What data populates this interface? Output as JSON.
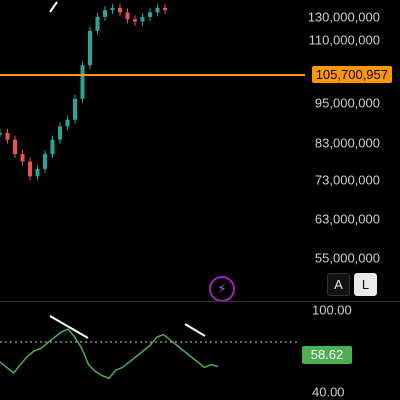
{
  "price_axis": {
    "labels": [
      "130,000,000",
      "110,000,000",
      "95,000,000",
      "83,000,000",
      "73,000,000",
      "63,000,000",
      "55,000,000"
    ],
    "ticks": [
      130000000,
      110000000,
      95000000,
      83000000,
      73000000,
      63000000,
      55000000
    ],
    "current_price": "105,700,957",
    "current_price_value": 105700957
  },
  "mode_buttons": {
    "auto": "A",
    "log": "L"
  },
  "bolt_icon": "lightning-icon",
  "rsi": {
    "labels": {
      "top": "100.00",
      "bottom": "40.00"
    },
    "value": "58.62"
  },
  "colors": {
    "background": "#000000",
    "up": "#26a69a",
    "down": "#ef5350",
    "price_line": "#ff9800",
    "rsi_line": "#4caf50",
    "accent": "#9c27b0"
  },
  "chart_data": {
    "type": "line",
    "series": [
      {
        "values": [
          86000000,
          84000000,
          80000000,
          78000000,
          74000000,
          76000000,
          80000000,
          84000000,
          88000000,
          90000000,
          96000000,
          104000000,
          118000000,
          130000000,
          136000000,
          138000000,
          134000000,
          128000000,
          126000000,
          130000000,
          134000000,
          138000000,
          136000000
        ]
      }
    ],
    "rsi_values": [
      62,
      58,
      54,
      60,
      66,
      70,
      72,
      76,
      80,
      84,
      86,
      80,
      72,
      60,
      55,
      52,
      50,
      56,
      58,
      62,
      66,
      70,
      74,
      80,
      82,
      78,
      74,
      70,
      66,
      62,
      58,
      60,
      58.62
    ]
  }
}
